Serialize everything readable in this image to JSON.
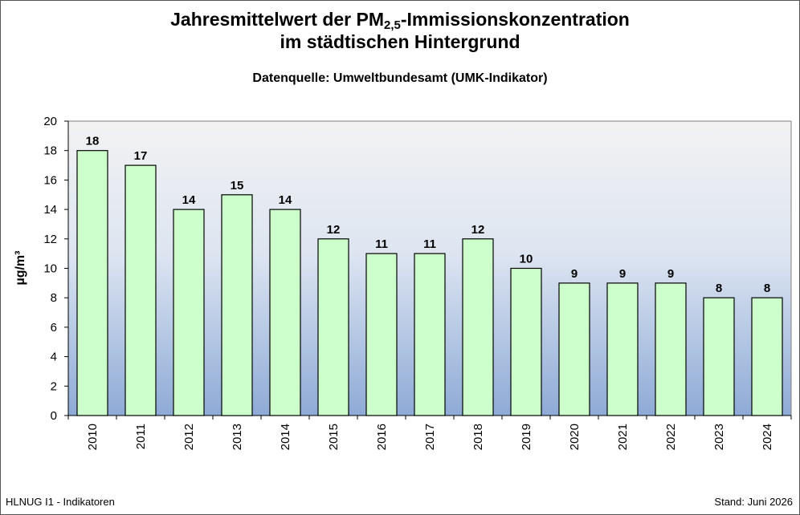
{
  "header": {
    "title_line1_prefix": "Jahresmittelwert der PM",
    "title_line1_sub": "2,5",
    "title_line1_suffix": "-Immissionskonzentration",
    "title_line2": "im städtischen Hintergrund",
    "subtitle": "Datenquelle: Umweltbundesamt (UMK-Indikator)"
  },
  "footer": {
    "left": "HLNUG I1 - Indikatoren",
    "right": "Stand: Juni 2026"
  },
  "colors": {
    "bar_fill": "#ccffcc",
    "bar_stroke": "#000000",
    "plot_bg_top": "#f2f2f2",
    "plot_bg_bottom": "#8eaad6"
  },
  "chart_data": {
    "type": "bar",
    "title": "Jahresmittelwert der PM2,5-Immissionskonzentration im städtischen Hintergrund",
    "subtitle": "Datenquelle: Umweltbundesamt (UMK-Indikator)",
    "xlabel": "",
    "ylabel": "µg/m³",
    "ylim": [
      0,
      20
    ],
    "yticks": [
      0,
      2,
      4,
      6,
      8,
      10,
      12,
      14,
      16,
      18,
      20
    ],
    "grid": false,
    "legend": "none",
    "categories": [
      "2010",
      "2011",
      "2012",
      "2013",
      "2014",
      "2015",
      "2016",
      "2017",
      "2018",
      "2019",
      "2020",
      "2021",
      "2022",
      "2023",
      "2024"
    ],
    "values": [
      18,
      17,
      14,
      15,
      14,
      12,
      11,
      11,
      12,
      10,
      9,
      9,
      9,
      8,
      8
    ],
    "data_labels": [
      "18",
      "17",
      "14",
      "15",
      "14",
      "12",
      "11",
      "11",
      "12",
      "10",
      "9",
      "9",
      "9",
      "8",
      "8"
    ]
  }
}
